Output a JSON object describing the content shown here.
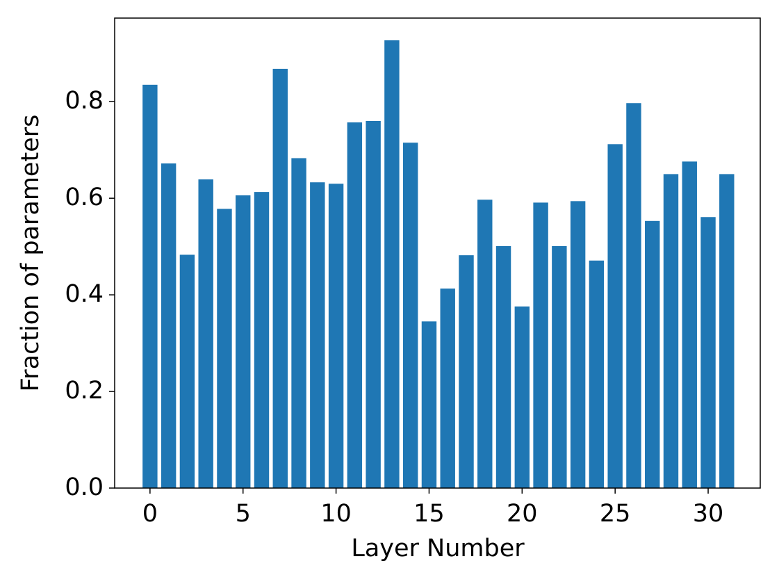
{
  "chart_data": {
    "type": "bar",
    "x": [
      0,
      1,
      2,
      3,
      4,
      5,
      6,
      7,
      8,
      9,
      10,
      11,
      12,
      13,
      14,
      15,
      16,
      17,
      18,
      19,
      20,
      21,
      22,
      23,
      24,
      25,
      26,
      27,
      28,
      29,
      30,
      31
    ],
    "values": [
      0.835,
      0.672,
      0.483,
      0.639,
      0.578,
      0.606,
      0.613,
      0.868,
      0.683,
      0.633,
      0.63,
      0.757,
      0.76,
      0.927,
      0.715,
      0.345,
      0.413,
      0.482,
      0.597,
      0.501,
      0.376,
      0.591,
      0.501,
      0.594,
      0.471,
      0.712,
      0.797,
      0.553,
      0.65,
      0.676,
      0.561,
      0.65
    ],
    "color": "#1f77b4",
    "x_label": "Layer Number",
    "y_label": "Fraction of parameters",
    "xlim": [
      -1.9,
      32.8
    ],
    "xticks": [
      0,
      5,
      10,
      15,
      20,
      25,
      30
    ],
    "ylim": [
      0,
      0.973
    ],
    "yticks": [
      {
        "value": 0,
        "label": "0.0"
      },
      0.2,
      0.4,
      0.6,
      0.8
    ],
    "grid": false
  }
}
